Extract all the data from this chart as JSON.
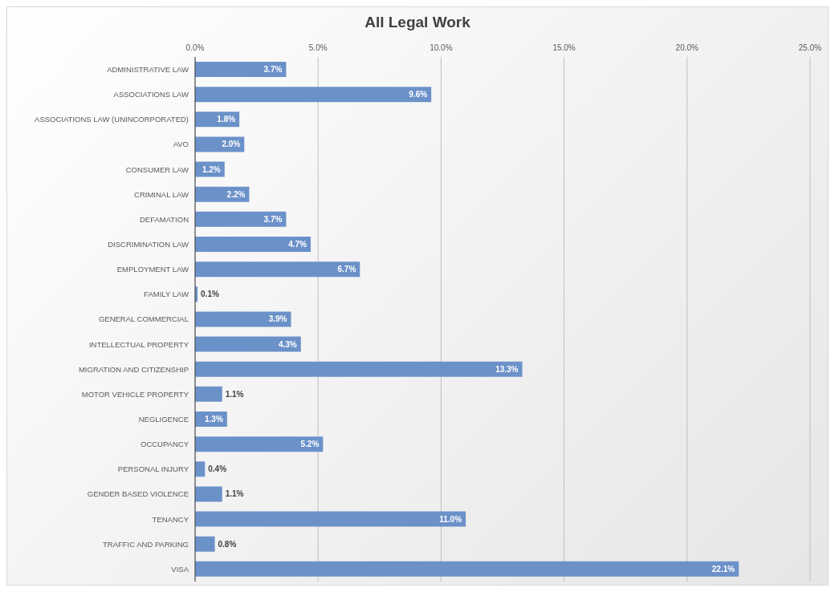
{
  "chart_data": {
    "type": "bar",
    "orientation": "horizontal",
    "title": "All Legal Work",
    "categories": [
      "ADMINISTRATIVE LAW",
      "ASSOCIATIONS LAW",
      "ASSOCIATIONS LAW (UNINCORPORATED)",
      "AVO",
      "CONSUMER LAW",
      "CRIMINAL LAW",
      "DEFAMATION",
      "DISCRIMINATION LAW",
      "EMPLOYMENT LAW",
      "FAMILY LAW",
      "GENERAL COMMERCIAL",
      "INTELLECTUAL PROPERTY",
      "MIGRATION AND CITIZENSHIP",
      "MOTOR VEHICLE PROPERTY",
      "NEGLIGENCE",
      "OCCUPANCY",
      "PERSONAL INJURY",
      "GENDER BASED VIOLENCE",
      "TENANCY",
      "TRAFFIC AND PARKING",
      "VISA"
    ],
    "values": [
      3.7,
      9.6,
      1.8,
      2.0,
      1.2,
      2.2,
      3.7,
      4.7,
      6.7,
      0.1,
      3.9,
      4.3,
      13.3,
      1.1,
      1.3,
      5.2,
      0.4,
      1.1,
      11.0,
      0.8,
      22.1
    ],
    "value_labels": [
      "3.7%",
      "9.6%",
      "1.8%",
      "2.0%",
      "1.2%",
      "2.2%",
      "3.7%",
      "4.7%",
      "6.7%",
      "0.1%",
      "3.9%",
      "4.3%",
      "13.3%",
      "1.1%",
      "1.3%",
      "5.2%",
      "0.4%",
      "1.1%",
      "11.0%",
      "0.8%",
      "22.1%"
    ],
    "color": "#6b91c9",
    "xlim": [
      0,
      25
    ],
    "xticks": [
      {
        "value": 0,
        "label": "0.0%"
      },
      {
        "value": 5,
        "label": "5.0%"
      },
      {
        "value": 10,
        "label": "10.0%"
      },
      {
        "value": 15,
        "label": "15.0%"
      },
      {
        "value": 20,
        "label": "20.0%"
      },
      {
        "value": 25,
        "label": "25.0%"
      }
    ],
    "grid": "x",
    "legend": false
  }
}
